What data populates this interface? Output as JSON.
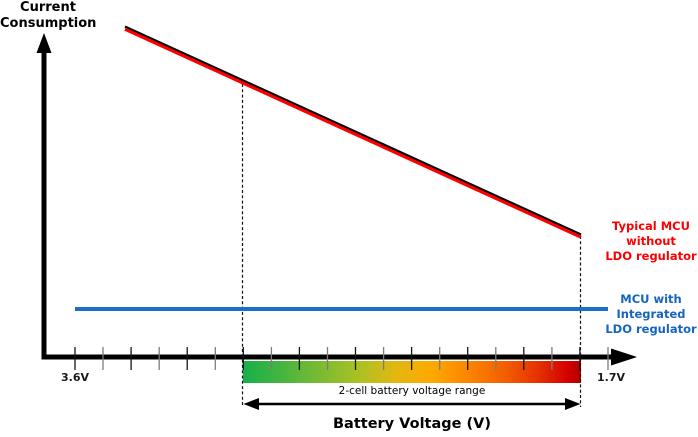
{
  "title": {
    "line1": "Current",
    "line2": "Consumption"
  },
  "x_axis": {
    "label": "Battery Voltage (V)",
    "left_tick_label": "3.6V",
    "right_tick_label": "1.7V"
  },
  "legend": {
    "red_series": {
      "line1": "Typical MCU",
      "line2": "without",
      "line3": "LDO regulator",
      "color": "#ff0000"
    },
    "blue_series": {
      "line1": "MCU with",
      "line2": "Integrated",
      "line3": "LDO regulator",
      "color": "#1565c0"
    }
  },
  "range_annotation": {
    "label": "2-cell battery voltage range"
  },
  "colors": {
    "red_line": "#fe0000",
    "red_line_edge": "#000000",
    "blue_line": "#1d6ec9",
    "axis": "#000000",
    "gradient_start_green": "#17b04a",
    "gradient_mid_orange": "#ffa800",
    "gradient_end_red": "#b30000"
  },
  "chart_data": {
    "type": "line",
    "title": "",
    "xlabel": "Battery Voltage (V)",
    "ylabel": "Current Consumption",
    "x_axis_orientation": "voltage decreases left-to-right, 3.6V at origin to 1.7V at arrow",
    "x_tick_labels": [
      "3.6V",
      "1.7V"
    ],
    "y_axis": "unlabeled qualitative axis (relative current consumption 0-1)",
    "grid": false,
    "legend_position": "right of lines, stacked text labels",
    "series": [
      {
        "name": "Typical MCU without LDO regulator",
        "color": "#fe0000",
        "shape": "straight descending line",
        "points": [
          {
            "x_volts": 3.42,
            "y_rel": 1.0
          },
          {
            "x_volts": 1.8,
            "y_rel": 0.37
          }
        ],
        "note": "current consumption falls linearly as battery voltage drops from 3.6V toward 1.7V"
      },
      {
        "name": "MCU with Integrated LDO regulator",
        "color": "#1d6ec9",
        "shape": "flat horizontal line",
        "points": [
          {
            "x_volts": 3.6,
            "y_rel": 0.15
          },
          {
            "x_volts": 1.7,
            "y_rel": 0.15
          }
        ],
        "note": "constant low current consumption across full voltage range"
      }
    ],
    "annotations": [
      {
        "type": "range-band",
        "label": "2-cell battery voltage range",
        "x_from_volts": 3.0,
        "x_to_volts": 1.8,
        "style": "green-to-red horizontal gradient bar under axis, delimited by vertical dashed lines and a double-headed arrow"
      }
    ]
  }
}
